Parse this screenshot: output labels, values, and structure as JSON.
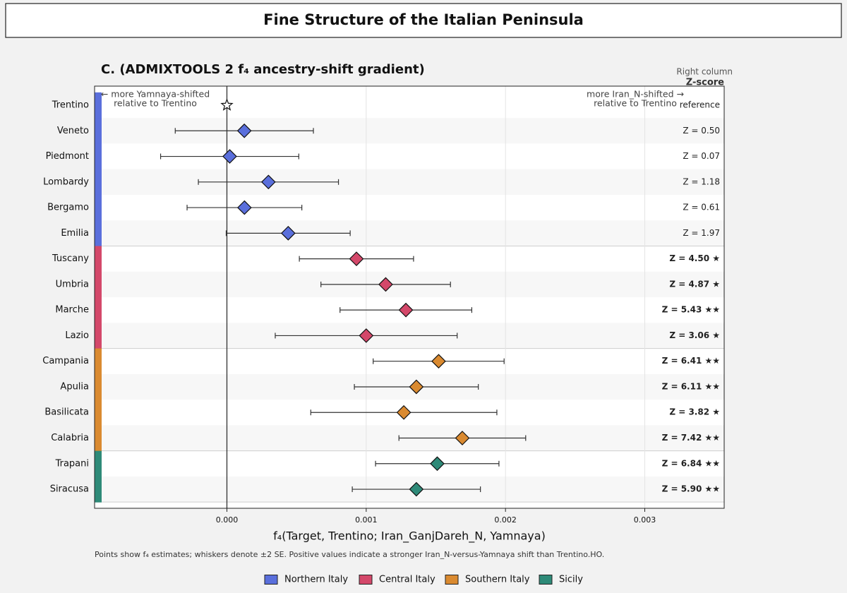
{
  "page_title": "Fine Structure of the Italian Peninsula",
  "chart_data": {
    "type": "forest",
    "title": "C. (ADMIXTOOLS 2 f₄ ancestry-shift gradient)",
    "xlabel": "f₄(Target, Trentino; Iran_GanjDareh_N, Yamnaya)",
    "left_annotation": [
      "← more Yamnaya-shifted",
      "relative to Trentino"
    ],
    "right_annotation": [
      "more Iran_N-shifted →",
      "relative to Trentino"
    ],
    "right_column_title": "Right column",
    "right_column_header": "Z-score",
    "footnote": "Points show f₄ estimates; whiskers denote ±2 SE. Positive values indicate a stronger Iran_N-versus-Yamnaya shift than Trentino.HO.",
    "xlim": [
      -0.00095,
      0.00357
    ],
    "xticks": [
      {
        "value": 0,
        "label": "0.000"
      },
      {
        "value": 0.001,
        "label": "0.001"
      },
      {
        "value": 0.002,
        "label": "0.002"
      },
      {
        "value": 0.003,
        "label": "0.003"
      }
    ],
    "grid": true,
    "legend_position": "bottom",
    "series": [
      {
        "name": "Northern Italy",
        "color": "#5a6fdc",
        "categories": [
          "Trentino",
          "Veneto",
          "Piedmont",
          "Lombardy",
          "Bergamo",
          "Emilia"
        ],
        "values": [
          0,
          0.000125,
          2e-05,
          0.000298,
          0.000126,
          0.00044
        ],
        "errors": [
          null,
          0.000496,
          0.000496,
          0.000503,
          0.000412,
          0.000445
        ],
        "z_labels": [
          "reference",
          "Z = 0.50",
          "Z = 0.07",
          "Z = 1.18",
          "Z = 0.61",
          "Z = 1.97"
        ]
      },
      {
        "name": "Central Italy",
        "color": "#d4486a",
        "categories": [
          "Tuscany",
          "Umbria",
          "Marche",
          "Lazio"
        ],
        "values": [
          0.00093,
          0.00114,
          0.001285,
          0.001
        ],
        "errors": [
          0.00041,
          0.000465,
          0.000473,
          0.000653
        ],
        "z_labels": [
          "Z = 4.50 ★",
          "Z = 4.87 ★",
          "Z = 5.43 ★★",
          "Z = 3.06 ★"
        ]
      },
      {
        "name": "Southern Italy",
        "color": "#da8a30",
        "categories": [
          "Campania",
          "Apulia",
          "Basilicata",
          "Calabria"
        ],
        "values": [
          0.00152,
          0.00136,
          0.00127,
          0.00169
        ],
        "errors": [
          0.00047,
          0.000445,
          0.000668,
          0.000455
        ],
        "z_labels": [
          "Z = 6.41 ★★",
          "Z = 6.11 ★★",
          "Z = 3.82 ★",
          "Z = 7.42 ★★"
        ]
      },
      {
        "name": "Sicily",
        "color": "#2e8a78",
        "categories": [
          "Trapani",
          "Siracusa"
        ],
        "values": [
          0.00151,
          0.00136
        ],
        "errors": [
          0.000443,
          0.00046
        ],
        "z_labels": [
          "Z = 6.84 ★★",
          "Z = 5.90 ★★"
        ]
      }
    ]
  }
}
